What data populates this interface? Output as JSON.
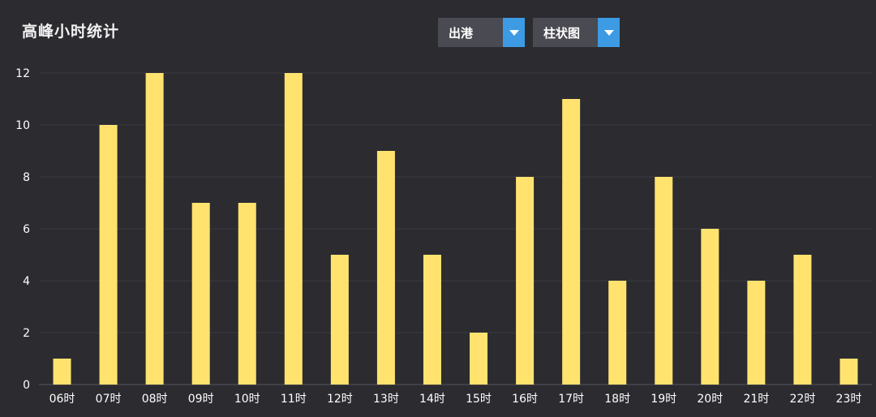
{
  "header": {
    "title": "高峰小时统计",
    "direction_select": {
      "value": "出港"
    },
    "chart_type_select": {
      "value": "柱状图"
    }
  },
  "colors": {
    "background": "#2b2b30",
    "bar": "#ffe36e",
    "select_bg": "#4a4a52",
    "select_arrow_bg": "#3d9be3",
    "grid": "#3a3a40"
  },
  "chart_data": {
    "type": "bar",
    "title": "",
    "xlabel": "",
    "ylabel": "",
    "ylim": [
      0,
      12
    ],
    "yticks": [
      0,
      2,
      4,
      6,
      8,
      10,
      12
    ],
    "categories": [
      "06时",
      "07时",
      "08时",
      "09时",
      "10时",
      "11时",
      "12时",
      "13时",
      "14时",
      "15时",
      "16时",
      "17时",
      "18时",
      "19时",
      "20时",
      "21时",
      "22时",
      "23时"
    ],
    "values": [
      1,
      10,
      12,
      7,
      7,
      12,
      5,
      9,
      5,
      2,
      8,
      11,
      4,
      8,
      6,
      4,
      5,
      1
    ],
    "grid": true,
    "legend": "none"
  }
}
